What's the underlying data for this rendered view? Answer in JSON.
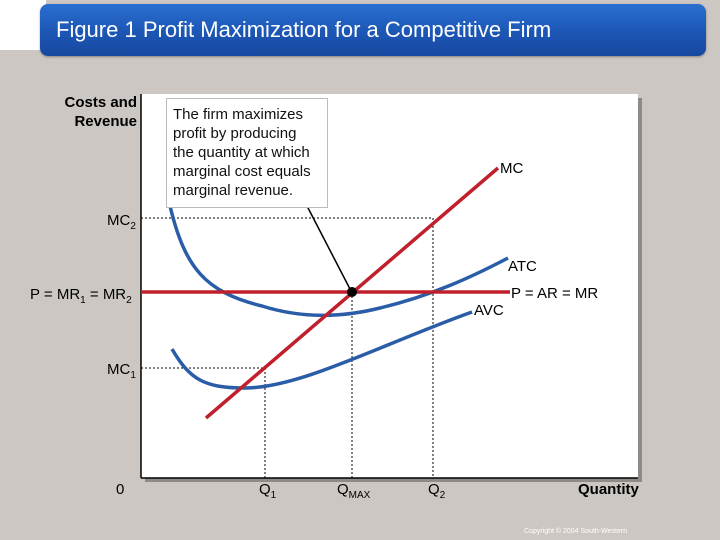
{
  "title": "Figure 1 Profit Maximization for a Competitive Firm",
  "y_axis_label": "Costs and Revenue",
  "x_axis_label": "Quantity",
  "origin_label": "0",
  "callout_text": "The firm maximizes profit by producing the quantity at which marginal cost equals marginal revenue.",
  "y_ticks": {
    "mc2": {
      "main": "MC",
      "sub": "2"
    },
    "price": {
      "text": "P = MR",
      "sub1": "1",
      "mid": " = MR",
      "sub2": "2"
    },
    "mc1": {
      "main": "MC",
      "sub": "1"
    }
  },
  "x_ticks": {
    "q1": {
      "main": "Q",
      "sub": "1"
    },
    "qmax": {
      "main": "Q",
      "sub": "MAX"
    },
    "q2": {
      "main": "Q",
      "sub": "2"
    }
  },
  "curves": {
    "mc": "MC",
    "atc": "ATC",
    "avc": "AVC",
    "price_line": "P = AR = MR"
  },
  "copyright": "Copyright © 2004 South-Western",
  "colors": {
    "title_bar": "#1c56b4",
    "mc_curve": "#c0202c",
    "price_line": "#c0202c",
    "cost_curves": "#2a5da8",
    "background": "#ccc7c2"
  }
}
